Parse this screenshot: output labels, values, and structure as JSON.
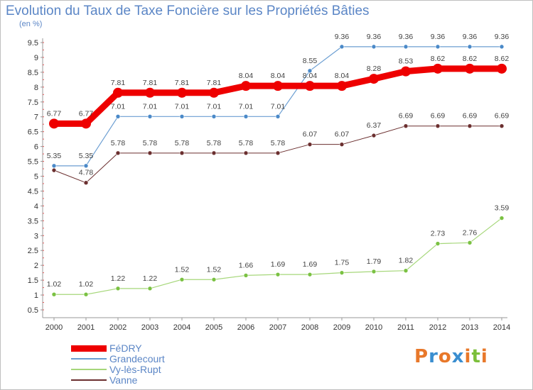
{
  "title": "Evolution du Taux de Taxe Foncière sur les Propriétés Bâties",
  "unit": "(en %)",
  "logo": {
    "chars": [
      "P",
      "r",
      "o",
      "x",
      "i",
      "t",
      "i"
    ],
    "colors": [
      "#e8782a",
      "#3a8ed0",
      "#e8782a",
      "#3a8ed0",
      "#e8782a",
      "#7bbf3a",
      "#e8782a"
    ]
  },
  "chart_data": {
    "type": "line",
    "title": "Evolution du Taux de Taxe Foncière sur les Propriétés Bâties",
    "ylabel": "(en %)",
    "xlabel": "",
    "x": [
      "2000",
      "2001",
      "2002",
      "2003",
      "2004",
      "2005",
      "2006",
      "2007",
      "2008",
      "2009",
      "2010",
      "2011",
      "2012",
      "2013",
      "2014"
    ],
    "ylim": [
      0.5,
      9.5
    ],
    "yticks": [
      "0.5",
      "1",
      "1.5",
      "2",
      "2.5",
      "3",
      "3.5",
      "4",
      "4.5",
      "5",
      "5.5",
      "6",
      "6.5",
      "7",
      "7.5",
      "8",
      "8.5",
      "9",
      "9.5"
    ],
    "grid": false,
    "legend": "bottom-left",
    "series": [
      {
        "name": "Vanne",
        "color": "#6b2f2f",
        "width": 1,
        "values": [
          5.2,
          4.78,
          5.78,
          5.78,
          5.78,
          5.78,
          5.78,
          5.78,
          6.07,
          6.07,
          6.37,
          6.69,
          6.69,
          6.69,
          6.69
        ],
        "labels": [
          "",
          "4.78",
          "5.78",
          "5.78",
          "5.78",
          "5.78",
          "5.78",
          "5.78",
          "6.07",
          "6.07",
          "6.37",
          "6.69",
          "6.69",
          "6.69",
          "6.69"
        ]
      },
      {
        "name": "Vy-lès-Rupt",
        "color": "#a6d77a",
        "dot": "#7ac142",
        "width": 1.2,
        "values": [
          1.02,
          1.02,
          1.22,
          1.22,
          1.52,
          1.52,
          1.66,
          1.69,
          1.69,
          1.75,
          1.79,
          1.82,
          2.73,
          2.76,
          3.59
        ],
        "labels": [
          "1.02",
          "1.02",
          "1.22",
          "1.22",
          "1.52",
          "1.52",
          "1.66",
          "1.69",
          "1.69",
          "1.75",
          "1.79",
          "1.82",
          "2.73",
          "2.76",
          "3.59"
        ]
      },
      {
        "name": "Grandecourt",
        "color": "#6b9ed2",
        "dot": "#4a89c8",
        "width": 1.2,
        "values": [
          5.35,
          5.35,
          7.01,
          7.01,
          7.01,
          7.01,
          7.01,
          7.01,
          8.55,
          9.36,
          9.36,
          9.36,
          9.36,
          9.36,
          9.36
        ],
        "labels": [
          "5.35",
          "5.35",
          "7.01",
          "7.01",
          "7.01",
          "7.01",
          "7.01",
          "7.01",
          "8.55",
          "9.36",
          "9.36",
          "9.36",
          "9.36",
          "9.36",
          "9.36"
        ]
      },
      {
        "name": "FéDRY",
        "color": "#ee0000",
        "width": 9,
        "values": [
          6.77,
          6.77,
          7.81,
          7.81,
          7.81,
          7.81,
          8.04,
          8.04,
          8.04,
          8.04,
          8.28,
          8.53,
          8.62,
          8.62,
          8.62
        ],
        "labels": [
          "6.77",
          "6.77",
          "7.81",
          "7.81",
          "7.81",
          "7.81",
          "8.04",
          "8.04",
          "8.04",
          "8.04",
          "8.28",
          "8.53",
          "8.62",
          "8.62",
          "8.62"
        ]
      }
    ],
    "legend_order": [
      "FéDRY",
      "Grandecourt",
      "Vy-lès-Rupt",
      "Vanne"
    ]
  }
}
